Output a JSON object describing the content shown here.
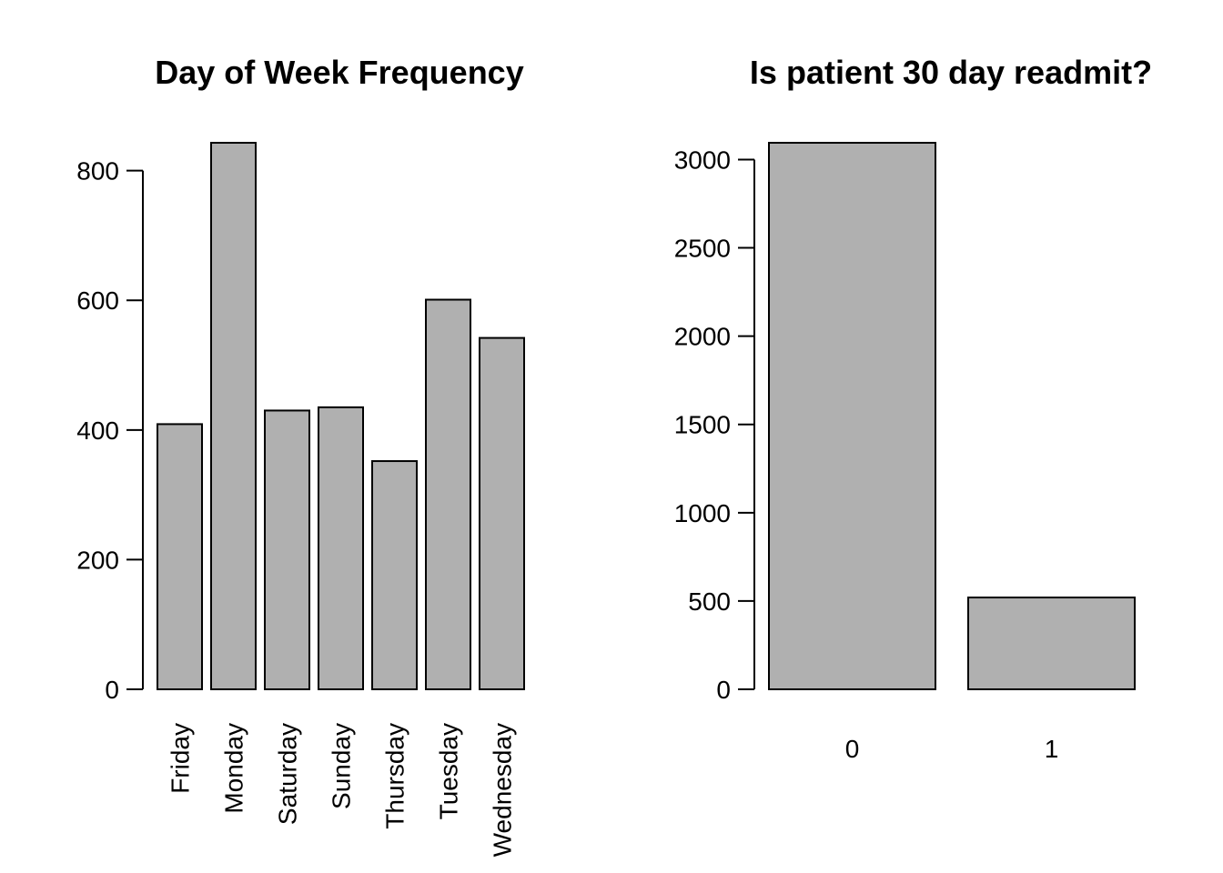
{
  "chart_data": [
    {
      "type": "bar",
      "title": "Day of Week Frequency",
      "xlabel": "",
      "ylabel": "",
      "categories": [
        "Friday",
        "Monday",
        "Saturday",
        "Sunday",
        "Thursday",
        "Tuesday",
        "Wednesday"
      ],
      "values": [
        409,
        843,
        430,
        435,
        352,
        601,
        542
      ],
      "ylim": [
        0,
        843
      ],
      "yticks": [
        0,
        200,
        400,
        600,
        800
      ],
      "grid": false,
      "bar_color": "#b0b0b0"
    },
    {
      "type": "bar",
      "title": "Is patient 30 day readmit?",
      "xlabel": "",
      "ylabel": "",
      "categories": [
        "0",
        "1"
      ],
      "values": [
        3095,
        520
      ],
      "ylim": [
        0,
        3095
      ],
      "yticks": [
        0,
        500,
        1000,
        1500,
        2000,
        2500,
        3000
      ],
      "grid": false,
      "bar_color": "#b0b0b0"
    }
  ]
}
